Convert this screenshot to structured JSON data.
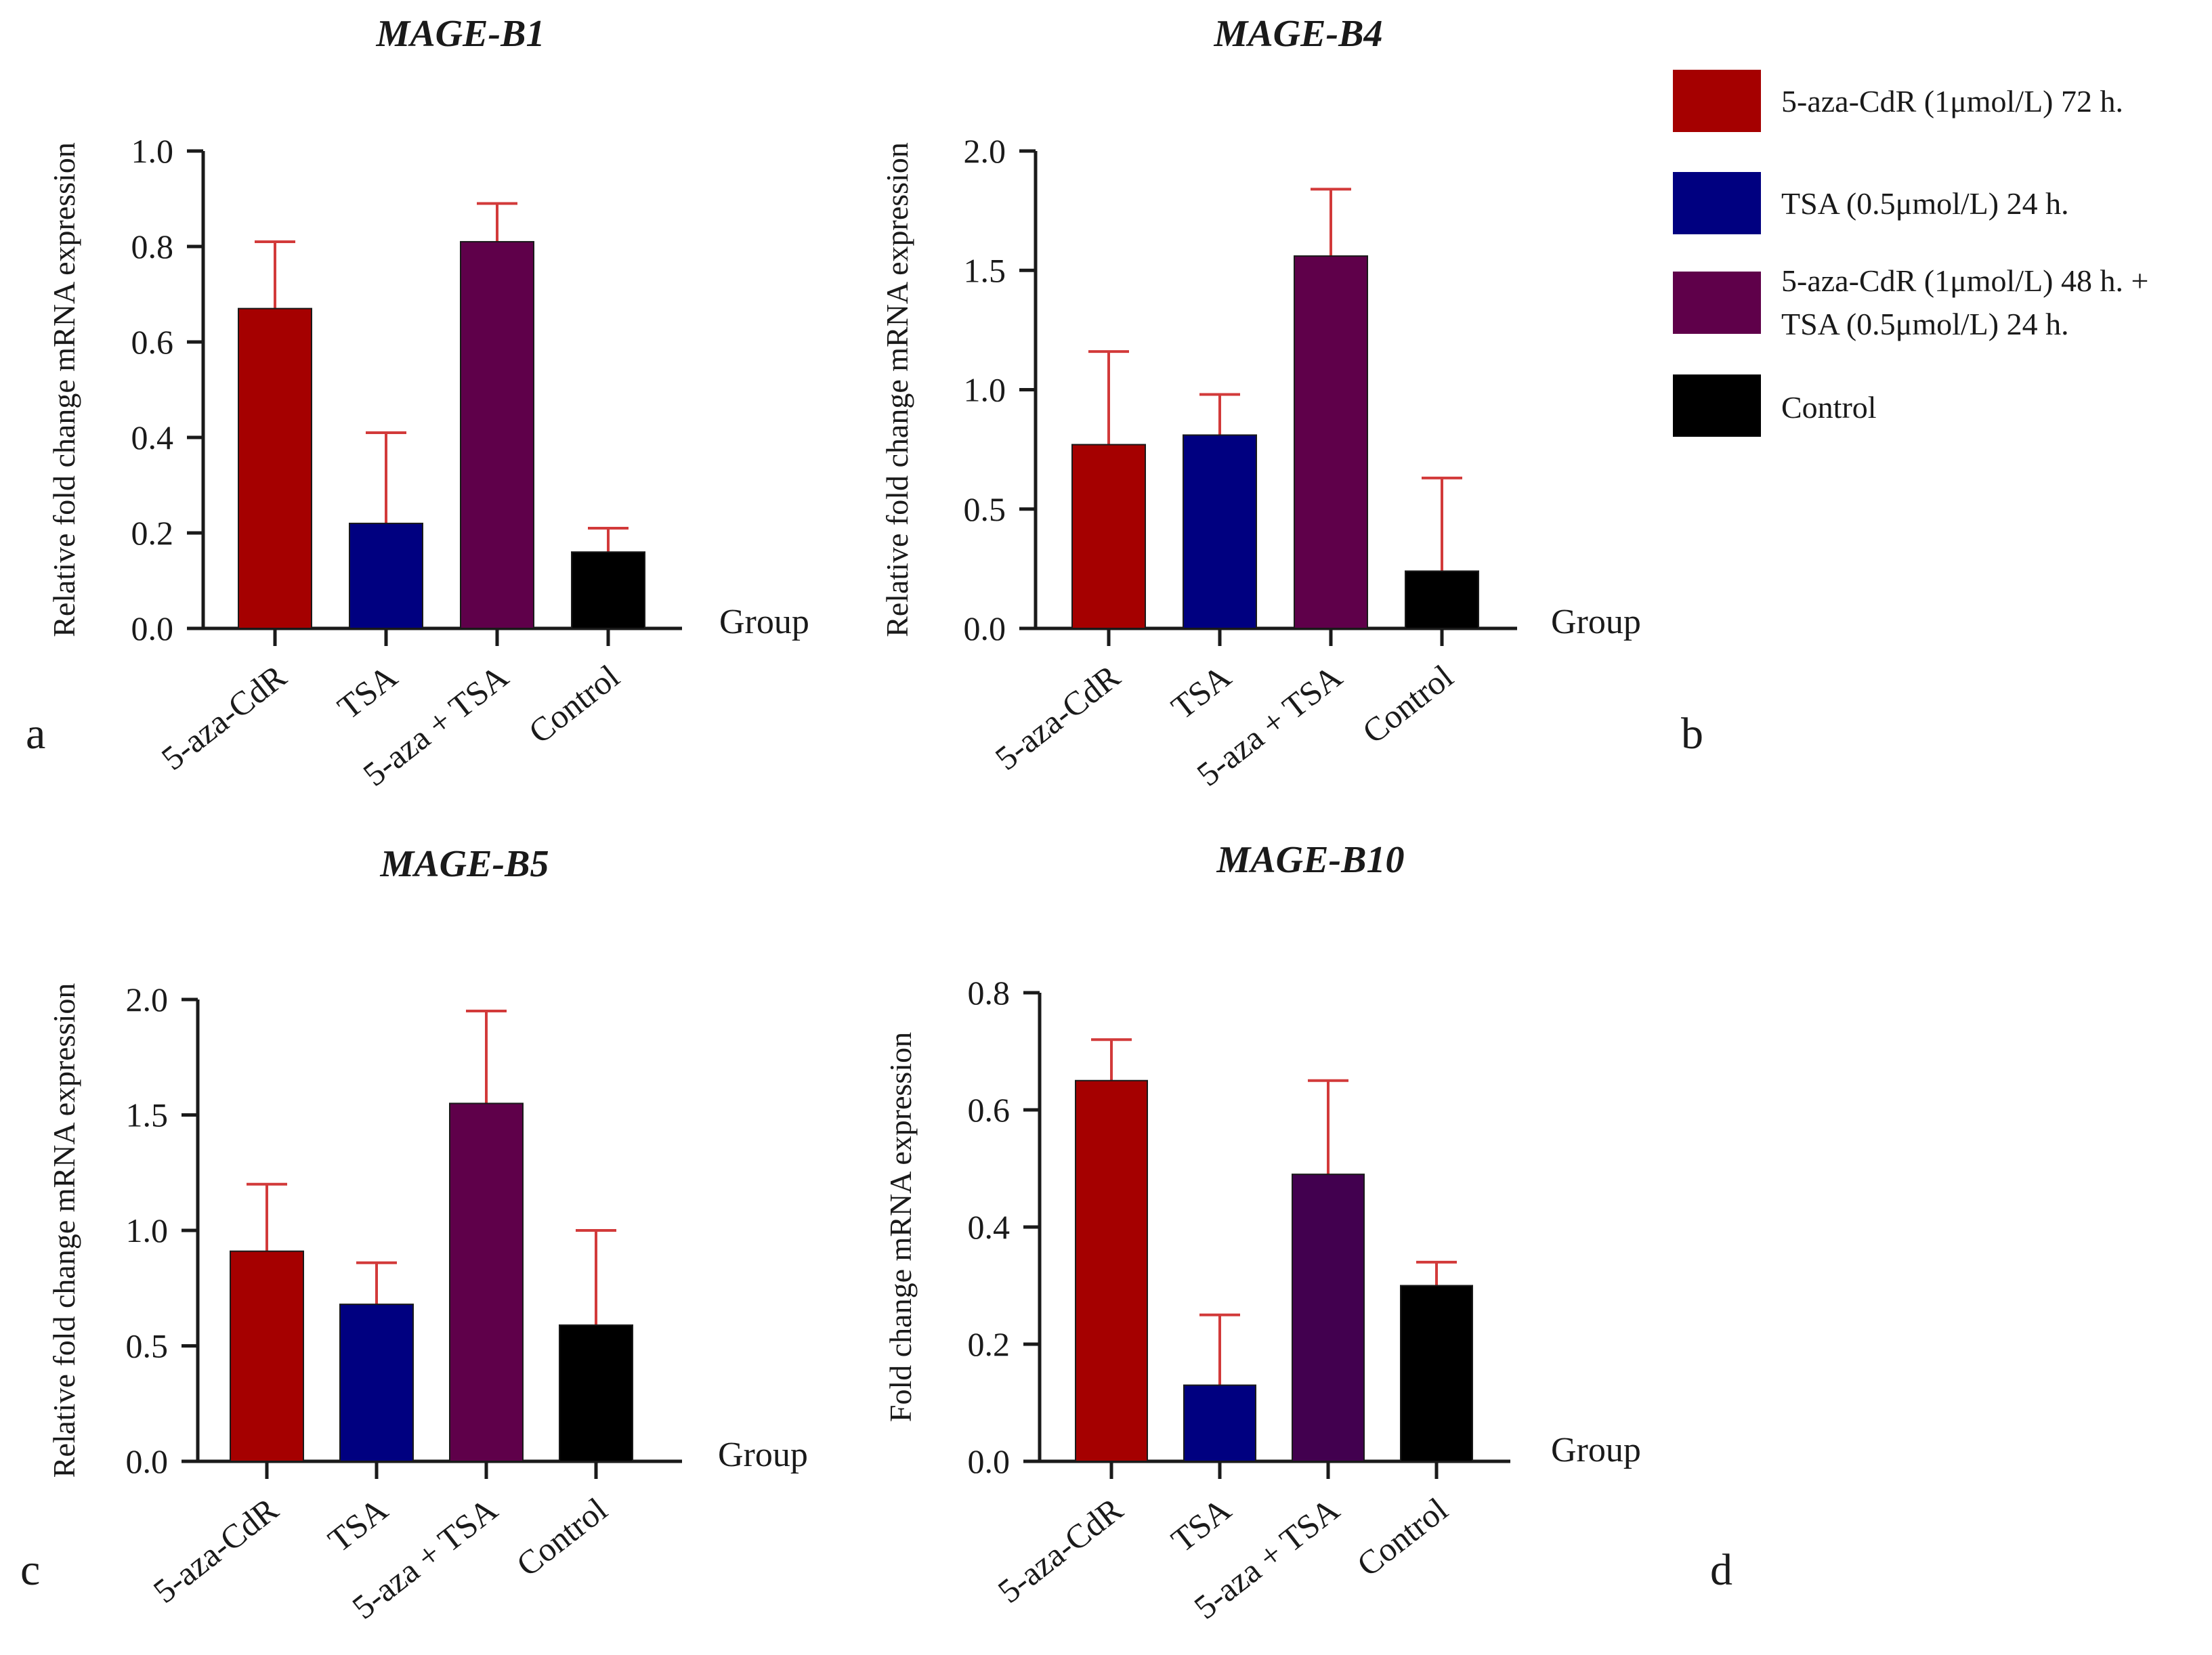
{
  "figure": {
    "group_label": "Group",
    "legend": [
      {
        "lines": [
          "5-aza-CdR (1μmol/L) 72 h."
        ],
        "color": "#a50000"
      },
      {
        "lines": [
          "TSA (0.5μmol/L) 24 h."
        ],
        "color": "#000080"
      },
      {
        "lines": [
          "5-aza-CdR (1μmol/L) 48 h. +",
          "TSA (0.5μmol/L) 24 h."
        ],
        "color": "#5f004a"
      },
      {
        "lines": [
          "Control"
        ],
        "color": "#000000"
      }
    ]
  },
  "chart_data": [
    {
      "type": "bar",
      "panel": "a",
      "title": "MAGE-B1",
      "ylabel": "Relative fold change mRNA expression",
      "xlabel": "Group",
      "categories": [
        "5-aza-CdR",
        "TSA",
        "5-aza + TSA",
        "Control"
      ],
      "values": [
        0.67,
        0.22,
        0.81,
        0.16
      ],
      "errors": [
        0.14,
        0.19,
        0.08,
        0.05
      ],
      "colors": [
        "#a50000",
        "#000080",
        "#5f004a",
        "#000000"
      ],
      "ylim": [
        0,
        1.0
      ],
      "yticks": [
        "0.0",
        "0.2",
        "0.4",
        "0.6",
        "0.8",
        "1.0"
      ]
    },
    {
      "type": "bar",
      "panel": "b",
      "title": "MAGE-B4",
      "ylabel": "Relative fold change mRNA expression",
      "xlabel": "Group",
      "categories": [
        "5-aza-CdR",
        "TSA",
        "5-aza + TSA",
        "Control"
      ],
      "values": [
        0.77,
        0.81,
        1.56,
        0.24
      ],
      "errors": [
        0.39,
        0.17,
        0.28,
        0.39
      ],
      "colors": [
        "#a50000",
        "#000080",
        "#5f004a",
        "#000000"
      ],
      "ylim": [
        0,
        2.0
      ],
      "yticks": [
        "0.0",
        "0.5",
        "1.0",
        "1.5",
        "2.0"
      ]
    },
    {
      "type": "bar",
      "panel": "c",
      "title": "MAGE-B5",
      "ylabel": "Relative fold change mRNA expression",
      "xlabel": "Group",
      "categories": [
        "5-aza-CdR",
        "TSA",
        "5-aza + TSA",
        "Control"
      ],
      "values": [
        0.91,
        0.68,
        1.55,
        0.59
      ],
      "errors": [
        0.29,
        0.18,
        0.4,
        0.41
      ],
      "colors": [
        "#a50000",
        "#000080",
        "#5f004a",
        "#000000"
      ],
      "ylim": [
        0,
        2.0
      ],
      "yticks": [
        "0.0",
        "0.5",
        "1.0",
        "1.5",
        "2.0"
      ]
    },
    {
      "type": "bar",
      "panel": "d",
      "title": "MAGE-B10",
      "ylabel": "Fold change mRNA expression",
      "xlabel": "Group",
      "categories": [
        "5-aza-CdR",
        "TSA",
        "5-aza + TSA",
        "Control"
      ],
      "values": [
        0.65,
        0.13,
        0.49,
        0.3
      ],
      "errors": [
        0.07,
        0.12,
        0.16,
        0.04
      ],
      "colors": [
        "#a50000",
        "#000080",
        "#42004f",
        "#000000"
      ],
      "ylim": [
        0,
        0.8
      ],
      "yticks": [
        "0.0",
        "0.2",
        "0.4",
        "0.6",
        "0.8"
      ]
    }
  ]
}
